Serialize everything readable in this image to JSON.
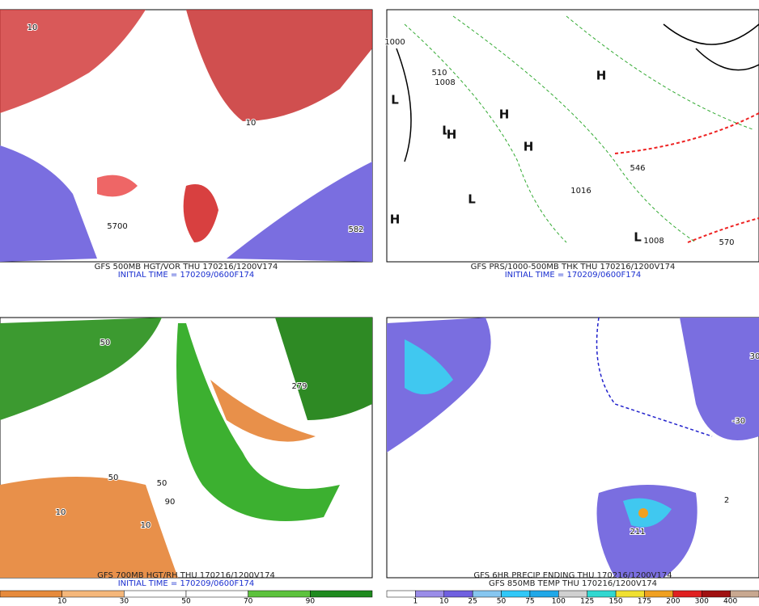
{
  "panels": [
    {
      "caption": "GFS 500MB HGT/VOR THU 170216/1200V174",
      "initial": "INITIAL TIME = 170209/0600F174",
      "labels": [
        "10",
        "10",
        "5700",
        "582"
      ]
    },
    {
      "caption": "GFS PRS/1000-500MB THK THU 170216/1200V174",
      "initial": "INITIAL TIME = 170209/0600F174",
      "labels": [
        "1000",
        "510",
        "1008",
        "1016",
        "1008",
        "546",
        "570",
        "L",
        "L",
        "L",
        "L",
        "H",
        "H",
        "H",
        "H",
        "H"
      ]
    },
    {
      "caption": "GFS 700MB HGT/RH THU 170216/1200V174",
      "initial": "INITIAL TIME = 170209/0600F174",
      "labels": [
        "50",
        "50",
        "50",
        "279",
        "10",
        "10",
        "90"
      ]
    },
    {
      "caption": "GFS 6HR PRECIP ENDING THU 170216/1200V174",
      "initial": "GFS 850MB TEMP THU 170216/1200V174",
      "labels": [
        "30",
        "2",
        "-30",
        "211"
      ]
    }
  ],
  "colorbars": [
    {
      "labels": [
        "10",
        "30",
        "50",
        "70",
        "90"
      ],
      "colors": [
        "#e68a3c",
        "#f5b77a",
        "#ffffff",
        "#ffffff",
        "#5cc23c",
        "#1f8a1f"
      ]
    },
    {
      "labels": [
        "1",
        "10",
        "25",
        "50",
        "75",
        "100",
        "125",
        "150",
        "175",
        "200",
        "300",
        "400"
      ],
      "colors": [
        "#ffffff",
        "#9a8ce8",
        "#7060e0",
        "#86c6f0",
        "#30c8f8",
        "#20a8e8",
        "#d0d0d0",
        "#30d8d0",
        "#f0e030",
        "#f0a020",
        "#e02020",
        "#a01010",
        "#c8a890"
      ]
    }
  ]
}
